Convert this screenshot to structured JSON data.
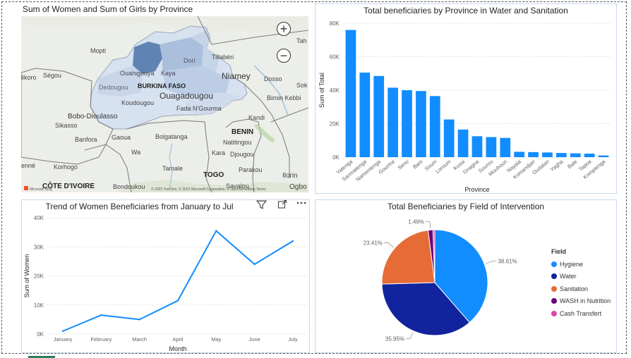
{
  "map_panel": {
    "title": "Sum of Women and Sum of Girls by Province",
    "zoom_in": "+",
    "zoom_out": "−",
    "labels": {
      "tahoua": "Tah",
      "mopti": "Mopti",
      "tillaberi": "Tillabéri",
      "niamey": "Niamey",
      "ouahigouya": "Ouahigouya",
      "kaya": "Kaya",
      "dori": "Dori",
      "sikoro": "likoro",
      "segou": "Ségou",
      "dedougou": "Dedougou",
      "burkina_faso": "BURKINA FASO",
      "dosso": "Dosso",
      "ouagadougou": "Ouagadougou",
      "birnin_kebbi": "Birnin Kebbi",
      "sok": "Sok",
      "koudougou": "Koudougou",
      "fada": "Fada N'Gourma",
      "bobo": "Bobo-Dioulasso",
      "kandi": "Kandi",
      "sikasso": "Sikasso",
      "benin": "BENIN",
      "banfora": "Banfora",
      "gaoua": "Gaoua",
      "bolgatanga": "Bolgatanga",
      "natitingou": "Natitingou",
      "wa": "Wa",
      "kara": "Kara",
      "djougou": "Djougou",
      "enne": "enné",
      "korhogo": "Korhogo",
      "tamale": "Tamale",
      "parakou": "Parakou",
      "togo": "TOGO",
      "ilorin": "Ilorin",
      "cote_divoire": "CÔTE D'IVOIRE",
      "bondoukou": "Bondoukou",
      "savalou": "Savalou",
      "ogbo": "Ogbo"
    },
    "attribution": "© 2023 TomTom, © 2023 Microsoft Corporation, © OpenStreetMap Terms",
    "ms_logo_text": "Microsoft Bing"
  },
  "bar_panel": {
    "title": "Total beneficiaries by Province in Water and Sanitation"
  },
  "line_panel": {
    "title": "Trend of Women Beneficiaries from January to Jul"
  },
  "pie_panel": {
    "title": "Total Beneficiaries by Field of Intervention",
    "legend_title": "Field"
  },
  "chart_data": [
    {
      "type": "bar",
      "title": "Total beneficiaries by Province in Water and Sanitation",
      "xlabel": "Province",
      "ylabel": "Sum of Total",
      "ylim": [
        0,
        80000
      ],
      "yticks": [
        "0K",
        "20K",
        "40K",
        "60K",
        "80K"
      ],
      "ytick_values": [
        0,
        20000,
        40000,
        60000,
        80000
      ],
      "color": "#118DFF",
      "categories": [
        "Yatenga",
        "Sanmatenga",
        "Namentenga",
        "Gourma",
        "Seno",
        "Bam",
        "Soum",
        "Loroum",
        "Kossi",
        "Gnagna",
        "Sourou",
        "Mouhoun",
        "Nayala",
        "Komandjari",
        "Oudalan",
        "Yagha",
        "Bale",
        "Tapoa",
        "Kompienga"
      ],
      "values": [
        76000,
        50500,
        48500,
        41500,
        40000,
        39500,
        36500,
        22500,
        16500,
        12500,
        12000,
        11500,
        3200,
        3000,
        2800,
        2500,
        2300,
        2100,
        1000
      ]
    },
    {
      "type": "line",
      "title": "Trend of Women Beneficiaries from January to Jul",
      "xlabel": "Month",
      "ylabel": "Sum of Women",
      "ylim": [
        0,
        40000
      ],
      "yticks": [
        "0K",
        "10K",
        "20K",
        "30K",
        "40K"
      ],
      "ytick_values": [
        0,
        10000,
        20000,
        30000,
        40000
      ],
      "color": "#118DFF",
      "x": [
        "January",
        "February",
        "March",
        "April",
        "May",
        "June",
        "July"
      ],
      "values": [
        1000,
        6500,
        5000,
        11500,
        35500,
        24000,
        32000
      ]
    },
    {
      "type": "pie",
      "title": "Total Beneficiaries by Field of Intervention",
      "legend_title": "Field",
      "slices": [
        {
          "name": "Hygiene",
          "value": 38.61,
          "label": "38.61%",
          "color": "#118DFF"
        },
        {
          "name": "Water",
          "value": 35.95,
          "label": "35.95%",
          "color": "#12239E"
        },
        {
          "name": "Sanitation",
          "value": 23.41,
          "label": "23.41%",
          "color": "#E66C37"
        },
        {
          "name": "WASH in Nutrition",
          "value": 1.49,
          "label": "1.49%",
          "color": "#6B007B"
        },
        {
          "name": "Cash Transfert",
          "value": 0.54,
          "label": "",
          "color": "#E044A7"
        }
      ]
    }
  ]
}
